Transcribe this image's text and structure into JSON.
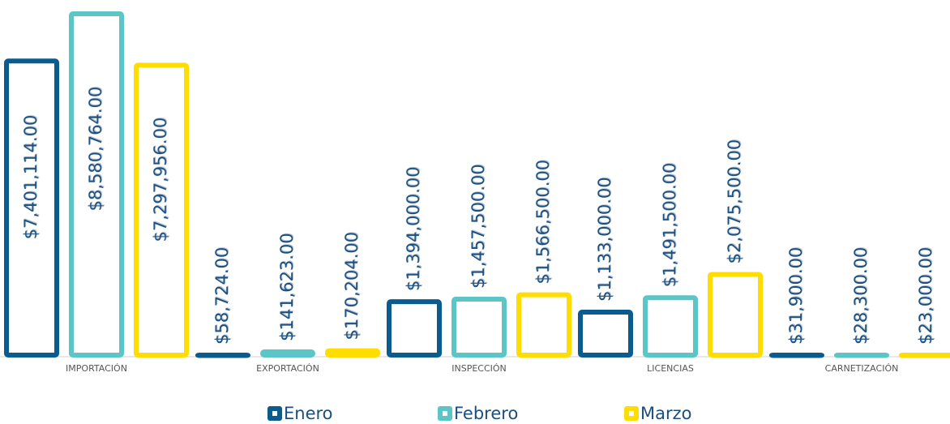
{
  "chart_data": {
    "type": "bar",
    "categories": [
      "IMPORTACIÓN",
      "EXPORTACIÓN",
      "INSPECCIÓN",
      "LICENCIAS",
      "CARNETIZACIÓN"
    ],
    "series": [
      {
        "name": "Enero",
        "color": "#0b5c8e",
        "values": [
          7401114,
          58724,
          1394000,
          1133000,
          31900
        ],
        "value_labels": [
          "$7,401,114.00",
          "$58,724.00",
          "$1,394,000.00",
          "$1,133,000.00",
          "$31,900.00"
        ]
      },
      {
        "name": "Febrero",
        "color": "#5cc6c6",
        "values": [
          8580764,
          141623,
          1457500,
          1491500,
          28300
        ],
        "value_labels": [
          "$8,580,764.00",
          "$141,623.00",
          "$1,457,500.00",
          "$1,491,500.00",
          "$28,300.00"
        ]
      },
      {
        "name": "Marzo",
        "color": "#ffdd00",
        "values": [
          7297956,
          170204,
          1566500,
          2075500,
          23000
        ],
        "value_labels": [
          "$7,297,956.00",
          "$170,204.00",
          "$1,566,500.00",
          "$2,075,500.00",
          "$23,000.00"
        ]
      }
    ]
  }
}
